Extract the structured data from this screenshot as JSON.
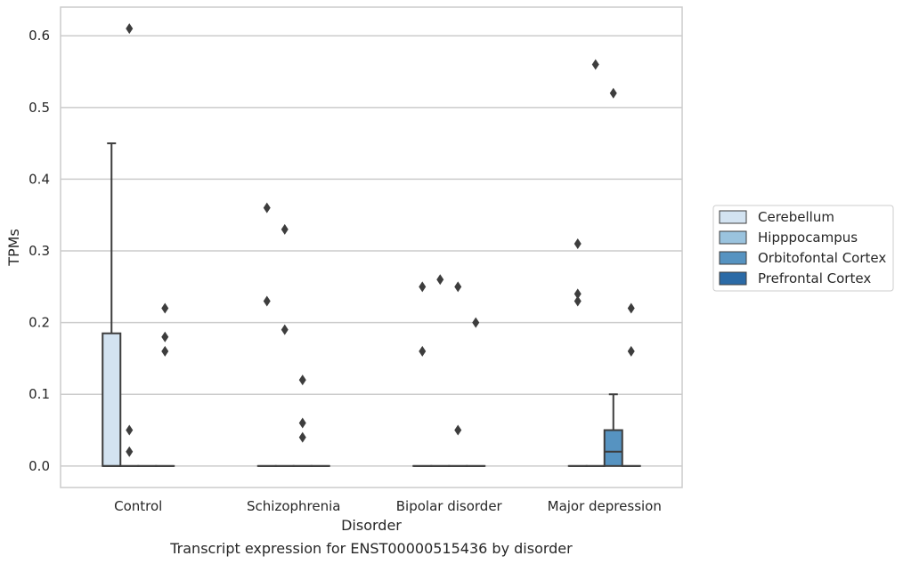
{
  "chart_data": {
    "type": "box",
    "title": "",
    "caption": "Transcript expression for ENST00000515436 by disorder",
    "xlabel": "Disorder",
    "ylabel": "TPMs",
    "ylim": [
      -0.03,
      0.64
    ],
    "yticks": [
      0.0,
      0.1,
      0.2,
      0.3,
      0.4,
      0.5,
      0.6
    ],
    "ytick_labels": [
      "0.0",
      "0.1",
      "0.2",
      "0.3",
      "0.4",
      "0.5",
      "0.6"
    ],
    "categories": [
      "Control",
      "Schizophrenia",
      "Bipolar disorder",
      "Major depression"
    ],
    "grid": "horizontal",
    "legend_position": "right",
    "series": [
      {
        "name": "Cerebellum",
        "color": "#d3e3f1",
        "boxes": [
          {
            "category": "Control",
            "whisker_low": 0.0,
            "q1": 0.0,
            "median": 0.0,
            "q3": 0.185,
            "whisker_high": 0.45,
            "outliers": []
          },
          {
            "category": "Schizophrenia",
            "whisker_low": 0.0,
            "q1": 0.0,
            "median": 0.0,
            "q3": 0.0,
            "whisker_high": 0.0,
            "outliers": [
              0.36,
              0.23
            ]
          },
          {
            "category": "Bipolar disorder",
            "whisker_low": 0.0,
            "q1": 0.0,
            "median": 0.0,
            "q3": 0.0,
            "whisker_high": 0.0,
            "outliers": [
              0.25,
              0.16
            ]
          },
          {
            "category": "Major depression",
            "whisker_low": 0.0,
            "q1": 0.0,
            "median": 0.0,
            "q3": 0.0,
            "whisker_high": 0.0,
            "outliers": [
              0.31,
              0.24,
              0.23
            ]
          }
        ]
      },
      {
        "name": "Hipppocampus",
        "color": "#9ac3de",
        "boxes": [
          {
            "category": "Control",
            "whisker_low": 0.0,
            "q1": 0.0,
            "median": 0.0,
            "q3": 0.0,
            "whisker_high": 0.0,
            "outliers": [
              0.61,
              0.05,
              0.02
            ]
          },
          {
            "category": "Schizophrenia",
            "whisker_low": 0.0,
            "q1": 0.0,
            "median": 0.0,
            "q3": 0.0,
            "whisker_high": 0.0,
            "outliers": [
              0.33,
              0.19
            ]
          },
          {
            "category": "Bipolar disorder",
            "whisker_low": 0.0,
            "q1": 0.0,
            "median": 0.0,
            "q3": 0.0,
            "whisker_high": 0.0,
            "outliers": [
              0.26
            ]
          },
          {
            "category": "Major depression",
            "whisker_low": 0.0,
            "q1": 0.0,
            "median": 0.0,
            "q3": 0.0,
            "whisker_high": 0.0,
            "outliers": [
              0.56
            ]
          }
        ]
      },
      {
        "name": "Orbitofontal Cortex",
        "color": "#5693c1",
        "boxes": [
          {
            "category": "Control",
            "whisker_low": 0.0,
            "q1": 0.0,
            "median": 0.0,
            "q3": 0.0,
            "whisker_high": 0.0,
            "outliers": []
          },
          {
            "category": "Schizophrenia",
            "whisker_low": 0.0,
            "q1": 0.0,
            "median": 0.0,
            "q3": 0.0,
            "whisker_high": 0.0,
            "outliers": [
              0.12,
              0.06,
              0.04
            ]
          },
          {
            "category": "Bipolar disorder",
            "whisker_low": 0.0,
            "q1": 0.0,
            "median": 0.0,
            "q3": 0.0,
            "whisker_high": 0.0,
            "outliers": [
              0.25,
              0.05
            ]
          },
          {
            "category": "Major depression",
            "whisker_low": 0.0,
            "q1": 0.0,
            "median": 0.02,
            "q3": 0.05,
            "whisker_high": 0.1,
            "outliers": [
              0.52
            ]
          }
        ]
      },
      {
        "name": "Prefrontal Cortex",
        "color": "#2b6aa6",
        "boxes": [
          {
            "category": "Control",
            "whisker_low": 0.0,
            "q1": 0.0,
            "median": 0.0,
            "q3": 0.0,
            "whisker_high": 0.0,
            "outliers": [
              0.22,
              0.18,
              0.16
            ]
          },
          {
            "category": "Schizophrenia",
            "whisker_low": 0.0,
            "q1": 0.0,
            "median": 0.0,
            "q3": 0.0,
            "whisker_high": 0.0,
            "outliers": []
          },
          {
            "category": "Bipolar disorder",
            "whisker_low": 0.0,
            "q1": 0.0,
            "median": 0.0,
            "q3": 0.0,
            "whisker_high": 0.0,
            "outliers": [
              0.2
            ]
          },
          {
            "category": "Major depression",
            "whisker_low": 0.0,
            "q1": 0.0,
            "median": 0.0,
            "q3": 0.0,
            "whisker_high": 0.0,
            "outliers": [
              0.22,
              0.16
            ]
          }
        ]
      }
    ]
  }
}
